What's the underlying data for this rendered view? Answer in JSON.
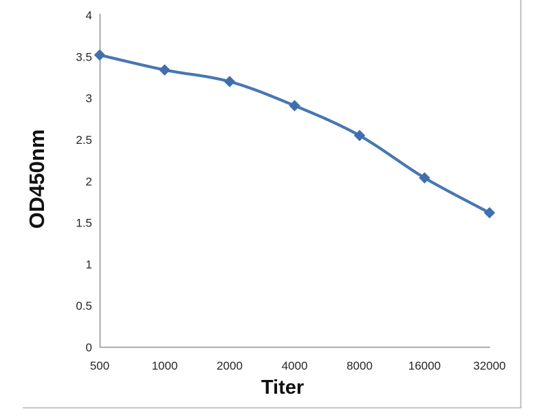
{
  "chart_data": {
    "type": "line",
    "title": "",
    "xlabel": "Titer",
    "ylabel": "OD450nm",
    "categories": [
      "500",
      "1000",
      "2000",
      "4000",
      "8000",
      "16000",
      "32000"
    ],
    "series": [
      {
        "name": "OD450nm",
        "values": [
          3.52,
          3.34,
          3.2,
          2.91,
          2.55,
          2.04,
          1.62
        ]
      }
    ],
    "ylim": [
      0,
      4
    ],
    "yticks": [
      "0",
      "0.5",
      "1",
      "1.5",
      "2",
      "2.5",
      "3",
      "3.5",
      "4"
    ],
    "grid": false,
    "legend": false,
    "smooth": true,
    "marker": "diamond",
    "colors": {
      "line": "#4877b1",
      "marker": "#3f6fae",
      "axis": "#a0a0a0",
      "frame_border": "#b2b2b2",
      "tick_text": "#262626",
      "label_text": "#111111"
    }
  }
}
